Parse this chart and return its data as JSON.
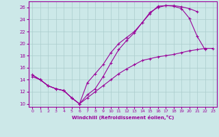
{
  "xlabel": "Windchill (Refroidissement éolien,°C)",
  "background_color": "#cce8e8",
  "grid_color": "#aacccc",
  "line_color": "#990099",
  "xlim": [
    -0.5,
    23.5
  ],
  "ylim": [
    9.5,
    27
  ],
  "yticks": [
    10,
    12,
    14,
    16,
    18,
    20,
    22,
    24,
    26
  ],
  "xticks": [
    0,
    1,
    2,
    3,
    4,
    5,
    6,
    7,
    8,
    9,
    10,
    11,
    12,
    13,
    14,
    15,
    16,
    17,
    18,
    19,
    20,
    21,
    22,
    23
  ],
  "line1_x": [
    0,
    1,
    2,
    3,
    4,
    5,
    6,
    7,
    8,
    9,
    10,
    11,
    12,
    13,
    14,
    15,
    16,
    17,
    18,
    19,
    20,
    21,
    22,
    23
  ],
  "line1_y": [
    14.8,
    14.0,
    13.0,
    12.5,
    12.2,
    11.0,
    10.0,
    11.5,
    12.5,
    14.5,
    16.8,
    19.0,
    20.5,
    21.8,
    23.5,
    25.0,
    26.2,
    26.3,
    26.2,
    25.8,
    24.2,
    21.2,
    19.0,
    null
  ],
  "line2_x": [
    0,
    1,
    2,
    3,
    4,
    5,
    6,
    7,
    8,
    9,
    10,
    11,
    12,
    13,
    14,
    15,
    16,
    17,
    18,
    19,
    20,
    21,
    22,
    23
  ],
  "line2_y": [
    14.8,
    14.0,
    13.0,
    12.5,
    12.2,
    11.0,
    10.0,
    13.5,
    15.0,
    16.5,
    18.5,
    20.0,
    21.0,
    22.0,
    23.5,
    25.2,
    26.0,
    26.3,
    26.3,
    26.1,
    25.8,
    25.3,
    null,
    null
  ],
  "line3_x": [
    0,
    1,
    2,
    3,
    4,
    5,
    6,
    7,
    8,
    9,
    10,
    11,
    12,
    13,
    14,
    15,
    16,
    17,
    18,
    19,
    20,
    21,
    22,
    23
  ],
  "line3_y": [
    14.5,
    14.0,
    13.0,
    12.5,
    12.2,
    11.0,
    10.0,
    11.0,
    12.0,
    13.0,
    14.0,
    15.0,
    15.8,
    16.5,
    17.2,
    17.5,
    17.8,
    18.0,
    18.2,
    18.5,
    18.8,
    19.0,
    19.2,
    19.2
  ]
}
